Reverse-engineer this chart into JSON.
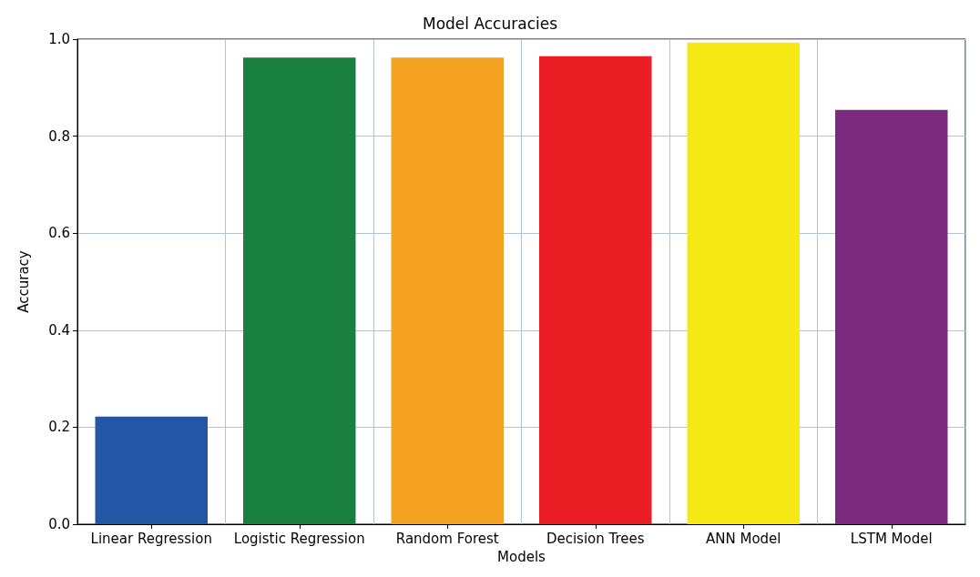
{
  "chart_data": {
    "type": "bar",
    "title": "Model Accuracies",
    "xlabel": "Models",
    "ylabel": "Accuracy",
    "categories": [
      "Linear Regression",
      "Logistic Regression",
      "Random Forest",
      "Decision Trees",
      "ANN Model",
      "LSTM Model"
    ],
    "values": [
      0.222,
      0.962,
      0.962,
      0.965,
      0.993,
      0.854
    ],
    "colors": [
      "#2456a6",
      "#19803f",
      "#f4a21f",
      "#eb1e25",
      "#f5e814",
      "#7b2a7f"
    ],
    "ylim": [
      0,
      1
    ],
    "yticks": [
      {
        "value": 0,
        "label": "0.0"
      },
      {
        "value": 0.2,
        "label": "0.2"
      },
      {
        "value": 0.4,
        "label": "0.4"
      },
      {
        "value": 0.6,
        "label": "0.6"
      },
      {
        "value": 0.8,
        "label": "0.8"
      },
      {
        "value": 1,
        "label": "1.0"
      }
    ],
    "grid": true
  }
}
